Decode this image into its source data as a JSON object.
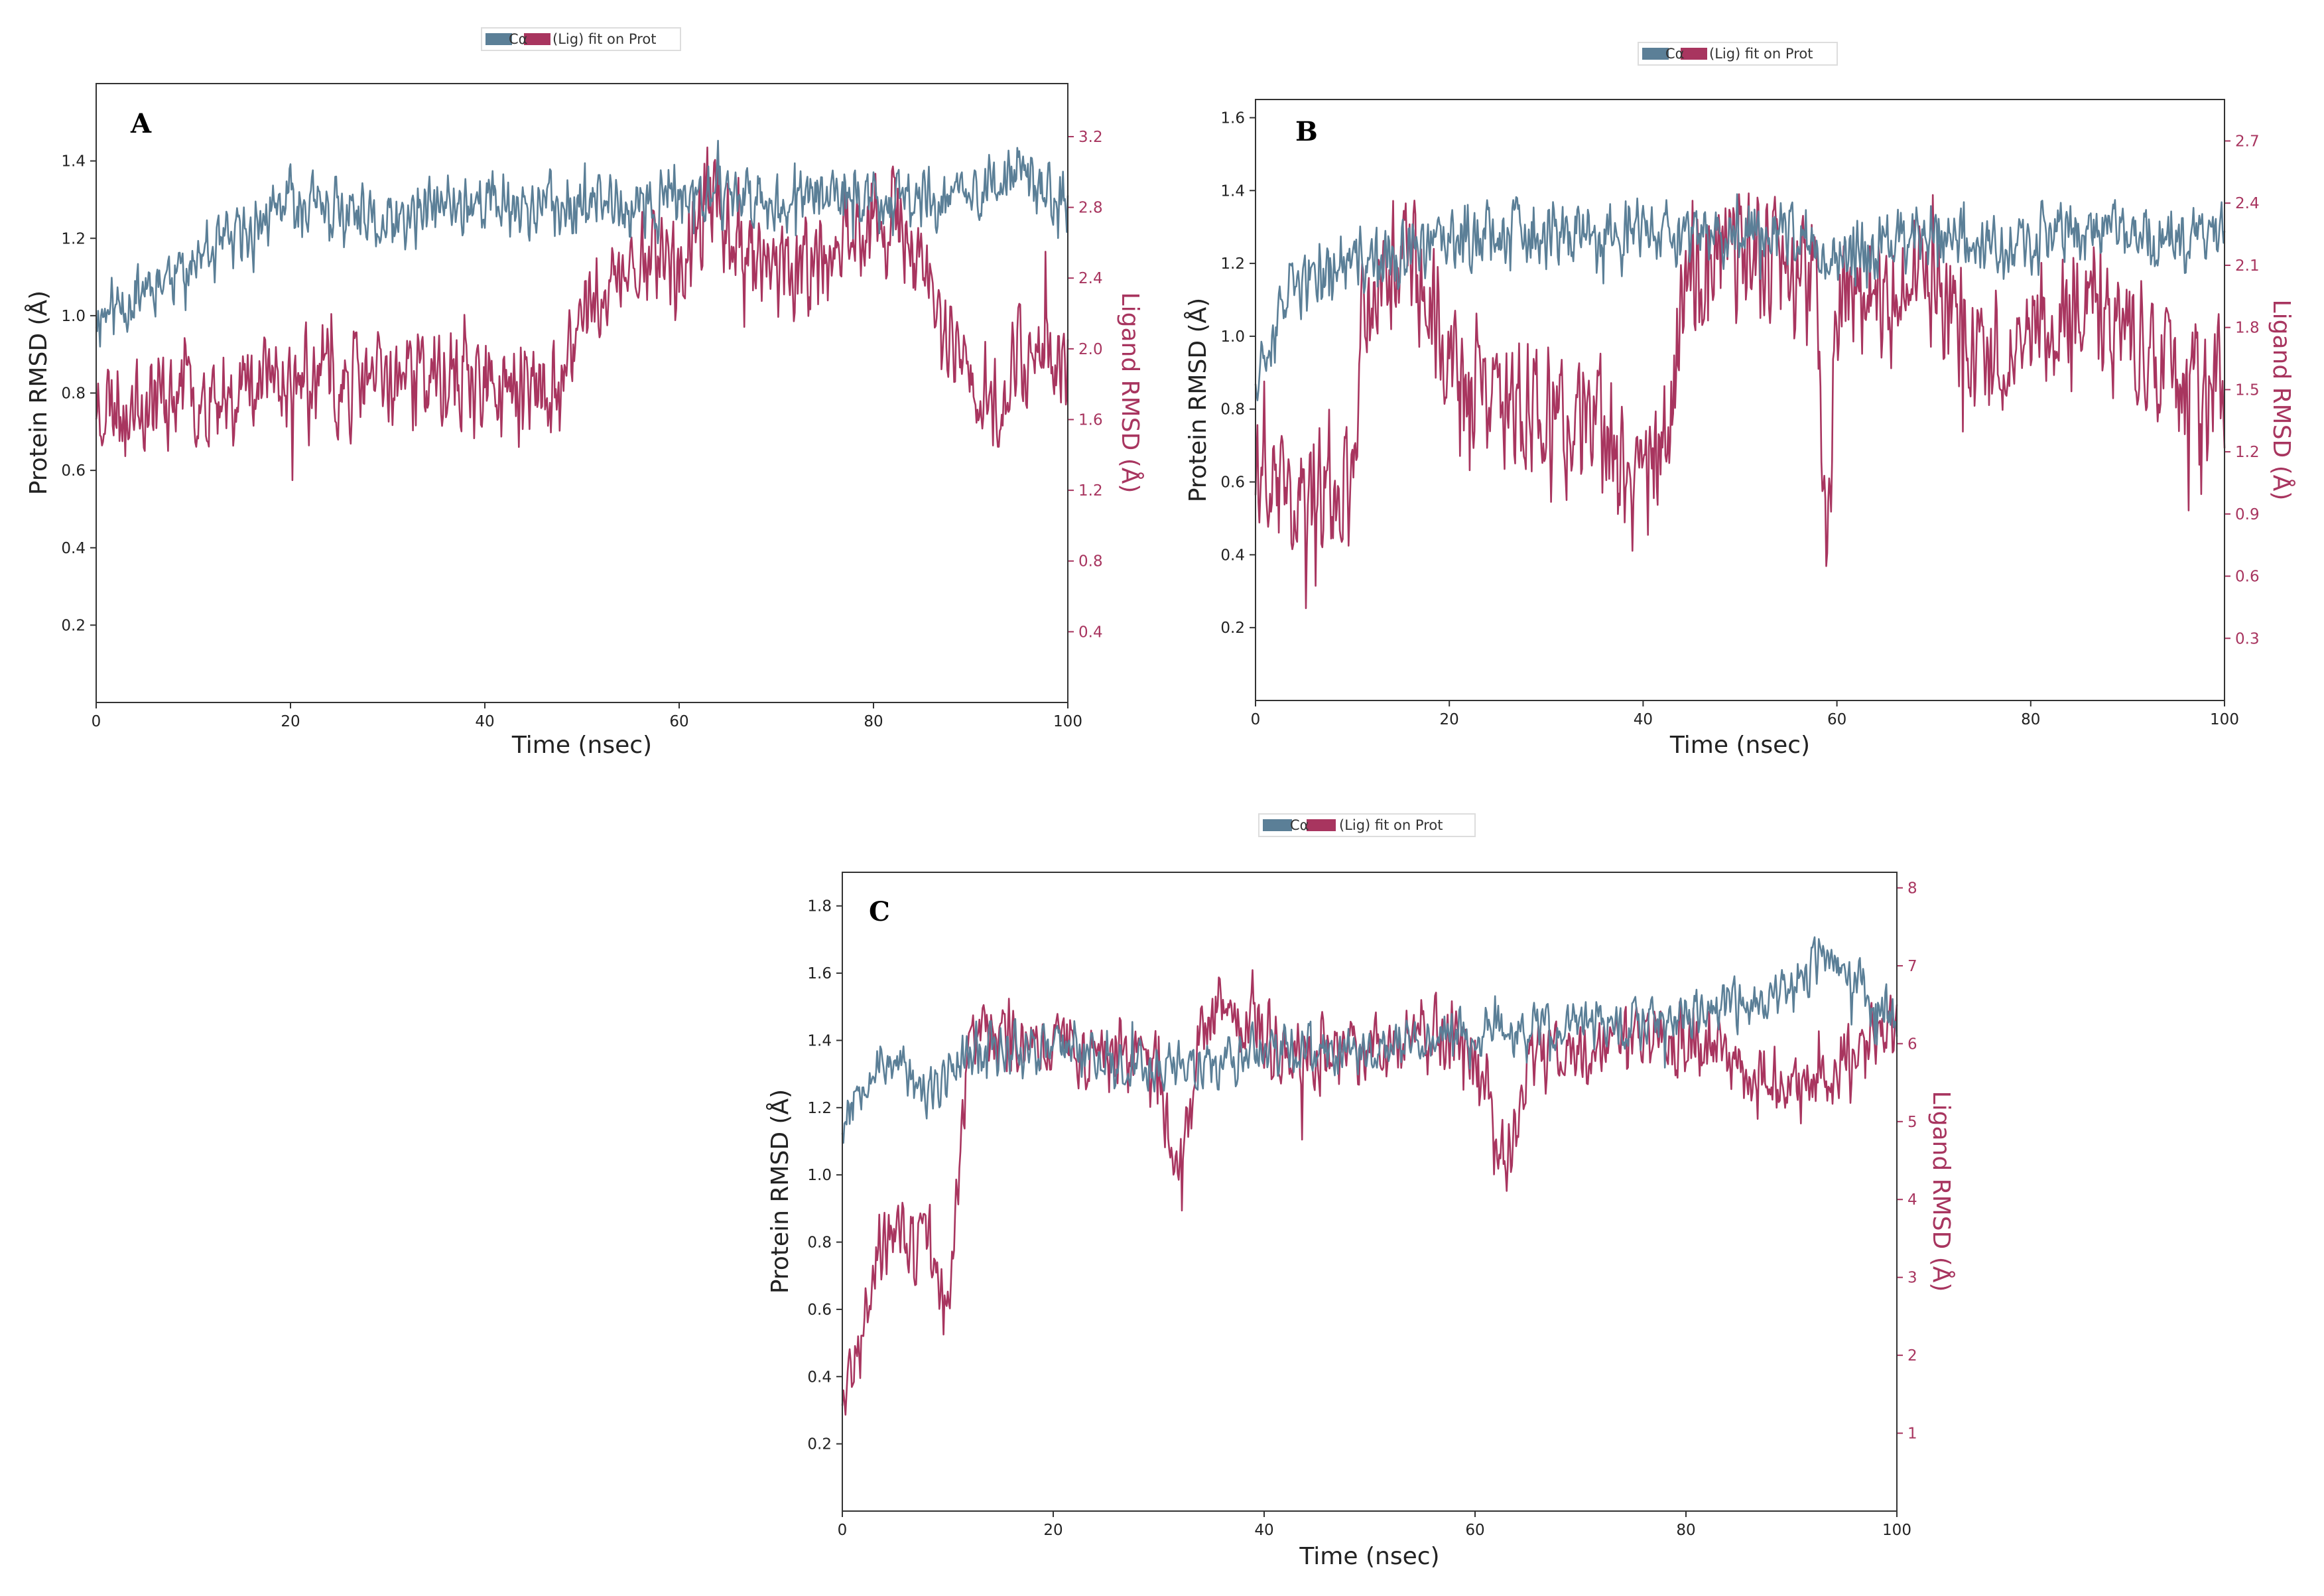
{
  "colors": {
    "protein": "#5b7f97",
    "ligand": "#a8355f",
    "axis": "#333333",
    "text": "#222222"
  },
  "chart_data": [
    {
      "type": "line",
      "panel": "A",
      "xlabel": "Time (nsec)",
      "ylabel_left": "Protein RMSD (Å)",
      "ylabel_right": "Ligand RMSD (Å)",
      "legend": {
        "protein": "Cα",
        "ligand": "(Lig) fit on Prot"
      },
      "xlim": [
        0,
        100
      ],
      "ylim_left": [
        0,
        1.6
      ],
      "ylim_right": [
        0,
        3.5
      ],
      "xticks": [
        0,
        20,
        40,
        60,
        80,
        100
      ],
      "yticks_left": [
        "0.2",
        "0.4",
        "0.6",
        "0.8",
        "1.0",
        "1.2",
        "1.4"
      ],
      "yticks_right": [
        "0.4",
        "0.8",
        "1.2",
        "1.6",
        "2.0",
        "2.4",
        "2.8",
        "3.2"
      ],
      "series": [
        {
          "name": "Cα",
          "axis": "left",
          "seed": 11,
          "x": [
            0,
            2,
            5,
            10,
            15,
            20,
            25,
            30,
            35,
            40,
            45,
            50,
            55,
            60,
            65,
            70,
            75,
            80,
            85,
            90,
            95,
            100
          ],
          "values": [
            1.0,
            1.02,
            1.08,
            1.13,
            1.2,
            1.3,
            1.26,
            1.22,
            1.28,
            1.3,
            1.28,
            1.3,
            1.27,
            1.3,
            1.32,
            1.3,
            1.3,
            1.3,
            1.3,
            1.32,
            1.36,
            1.28
          ],
          "noise": 0.065
        },
        {
          "name": "(Lig) fit on Prot",
          "axis": "right",
          "seed": 23,
          "x": [
            0,
            2,
            5,
            10,
            15,
            20,
            25,
            30,
            35,
            40,
            45,
            48,
            50,
            52,
            55,
            58,
            60,
            63,
            65,
            70,
            75,
            80,
            85,
            87,
            90,
            93,
            95,
            100
          ],
          "values": [
            1.7,
            1.7,
            1.72,
            1.75,
            1.78,
            1.85,
            1.8,
            1.82,
            1.85,
            1.8,
            1.75,
            1.7,
            2.25,
            2.3,
            2.45,
            2.6,
            2.4,
            2.85,
            2.7,
            2.45,
            2.5,
            2.75,
            2.6,
            2.0,
            1.85,
            1.7,
            2.0,
            1.95
          ],
          "noise": 0.22
        }
      ]
    },
    {
      "type": "line",
      "panel": "B",
      "xlabel": "Time (nsec)",
      "ylabel_left": "Protein RMSD (Å)",
      "ylabel_right": "Ligand RMSD (Å)",
      "legend": {
        "protein": "Cα",
        "ligand": "(Lig) fit on Prot"
      },
      "xlim": [
        0,
        100
      ],
      "ylim_left": [
        0,
        1.65
      ],
      "ylim_right": [
        0,
        2.9
      ],
      "xticks": [
        0,
        20,
        40,
        60,
        80,
        100
      ],
      "yticks_left": [
        "0.2",
        "0.4",
        "0.6",
        "0.8",
        "1.0",
        "1.2",
        "1.4",
        "1.6"
      ],
      "yticks_right": [
        "0.3",
        "0.6",
        "0.9",
        "1.2",
        "1.5",
        "1.8",
        "2.1",
        "2.4",
        "2.7"
      ],
      "series": [
        {
          "name": "Cα",
          "axis": "left",
          "seed": 37,
          "x": [
            0,
            2,
            5,
            10,
            15,
            20,
            25,
            30,
            35,
            40,
            45,
            50,
            55,
            60,
            65,
            70,
            75,
            80,
            85,
            90,
            95,
            100
          ],
          "values": [
            0.9,
            1.05,
            1.15,
            1.2,
            1.22,
            1.25,
            1.3,
            1.28,
            1.27,
            1.3,
            1.25,
            1.3,
            1.28,
            1.22,
            1.25,
            1.3,
            1.25,
            1.25,
            1.3,
            1.28,
            1.27,
            1.3
          ],
          "noise": 0.07
        },
        {
          "name": "(Lig) fit on Prot",
          "axis": "right",
          "seed": 41,
          "x": [
            0,
            5,
            10,
            11,
            15,
            18,
            20,
            25,
            30,
            35,
            40,
            43,
            44,
            48,
            55,
            58,
            59,
            60,
            65,
            70,
            75,
            80,
            85,
            90,
            95,
            100
          ],
          "values": [
            1.1,
            1.0,
            1.05,
            1.9,
            2.2,
            2.0,
            1.6,
            1.45,
            1.35,
            1.3,
            1.15,
            1.2,
            2.05,
            2.15,
            2.1,
            1.9,
            0.8,
            1.9,
            1.95,
            2.05,
            1.6,
            1.8,
            1.9,
            1.75,
            1.5,
            1.55
          ],
          "noise": 0.25
        }
      ]
    },
    {
      "type": "line",
      "panel": "C",
      "xlabel": "Time (nsec)",
      "ylabel_left": "Protein RMSD (Å)",
      "ylabel_right": "Ligand RMSD (Å)",
      "legend": {
        "protein": "Cα",
        "ligand": "(Lig) fit on Prot"
      },
      "xlim": [
        0,
        100
      ],
      "ylim_left": [
        0,
        1.9
      ],
      "ylim_right": [
        0,
        8.2
      ],
      "xticks": [
        0,
        20,
        40,
        60,
        80,
        100
      ],
      "yticks_left": [
        "0.2",
        "0.4",
        "0.6",
        "0.8",
        "1.0",
        "1.2",
        "1.4",
        "1.6",
        "1.8"
      ],
      "yticks_right": [
        "1",
        "2",
        "3",
        "4",
        "5",
        "6",
        "7",
        "8"
      ],
      "series": [
        {
          "name": "Cα",
          "axis": "left",
          "seed": 53,
          "x": [
            0,
            2,
            5,
            8,
            10,
            12,
            15,
            20,
            25,
            30,
            35,
            40,
            45,
            50,
            55,
            60,
            65,
            70,
            75,
            80,
            85,
            90,
            93,
            95,
            100
          ],
          "values": [
            1.15,
            1.3,
            1.35,
            1.22,
            1.3,
            1.38,
            1.38,
            1.38,
            1.35,
            1.32,
            1.33,
            1.37,
            1.36,
            1.38,
            1.4,
            1.42,
            1.42,
            1.45,
            1.45,
            1.48,
            1.5,
            1.55,
            1.65,
            1.6,
            1.45
          ],
          "noise": 0.06
        },
        {
          "name": "(Lig) fit on Prot",
          "axis": "right",
          "seed": 67,
          "x": [
            0,
            1,
            3,
            5,
            8,
            10,
            12,
            15,
            20,
            25,
            30,
            32,
            34,
            36,
            40,
            45,
            50,
            55,
            60,
            63,
            65,
            70,
            75,
            80,
            85,
            90,
            95,
            100
          ],
          "values": [
            1.5,
            2.0,
            3.2,
            3.6,
            3.3,
            2.6,
            6.0,
            6.2,
            6.0,
            5.9,
            5.6,
            4.2,
            6.0,
            6.4,
            6.1,
            5.9,
            6.0,
            6.2,
            6.0,
            4.4,
            5.8,
            5.9,
            6.1,
            6.0,
            5.8,
            5.4,
            5.7,
            6.3
          ],
          "noise": 0.35
        }
      ]
    }
  ]
}
